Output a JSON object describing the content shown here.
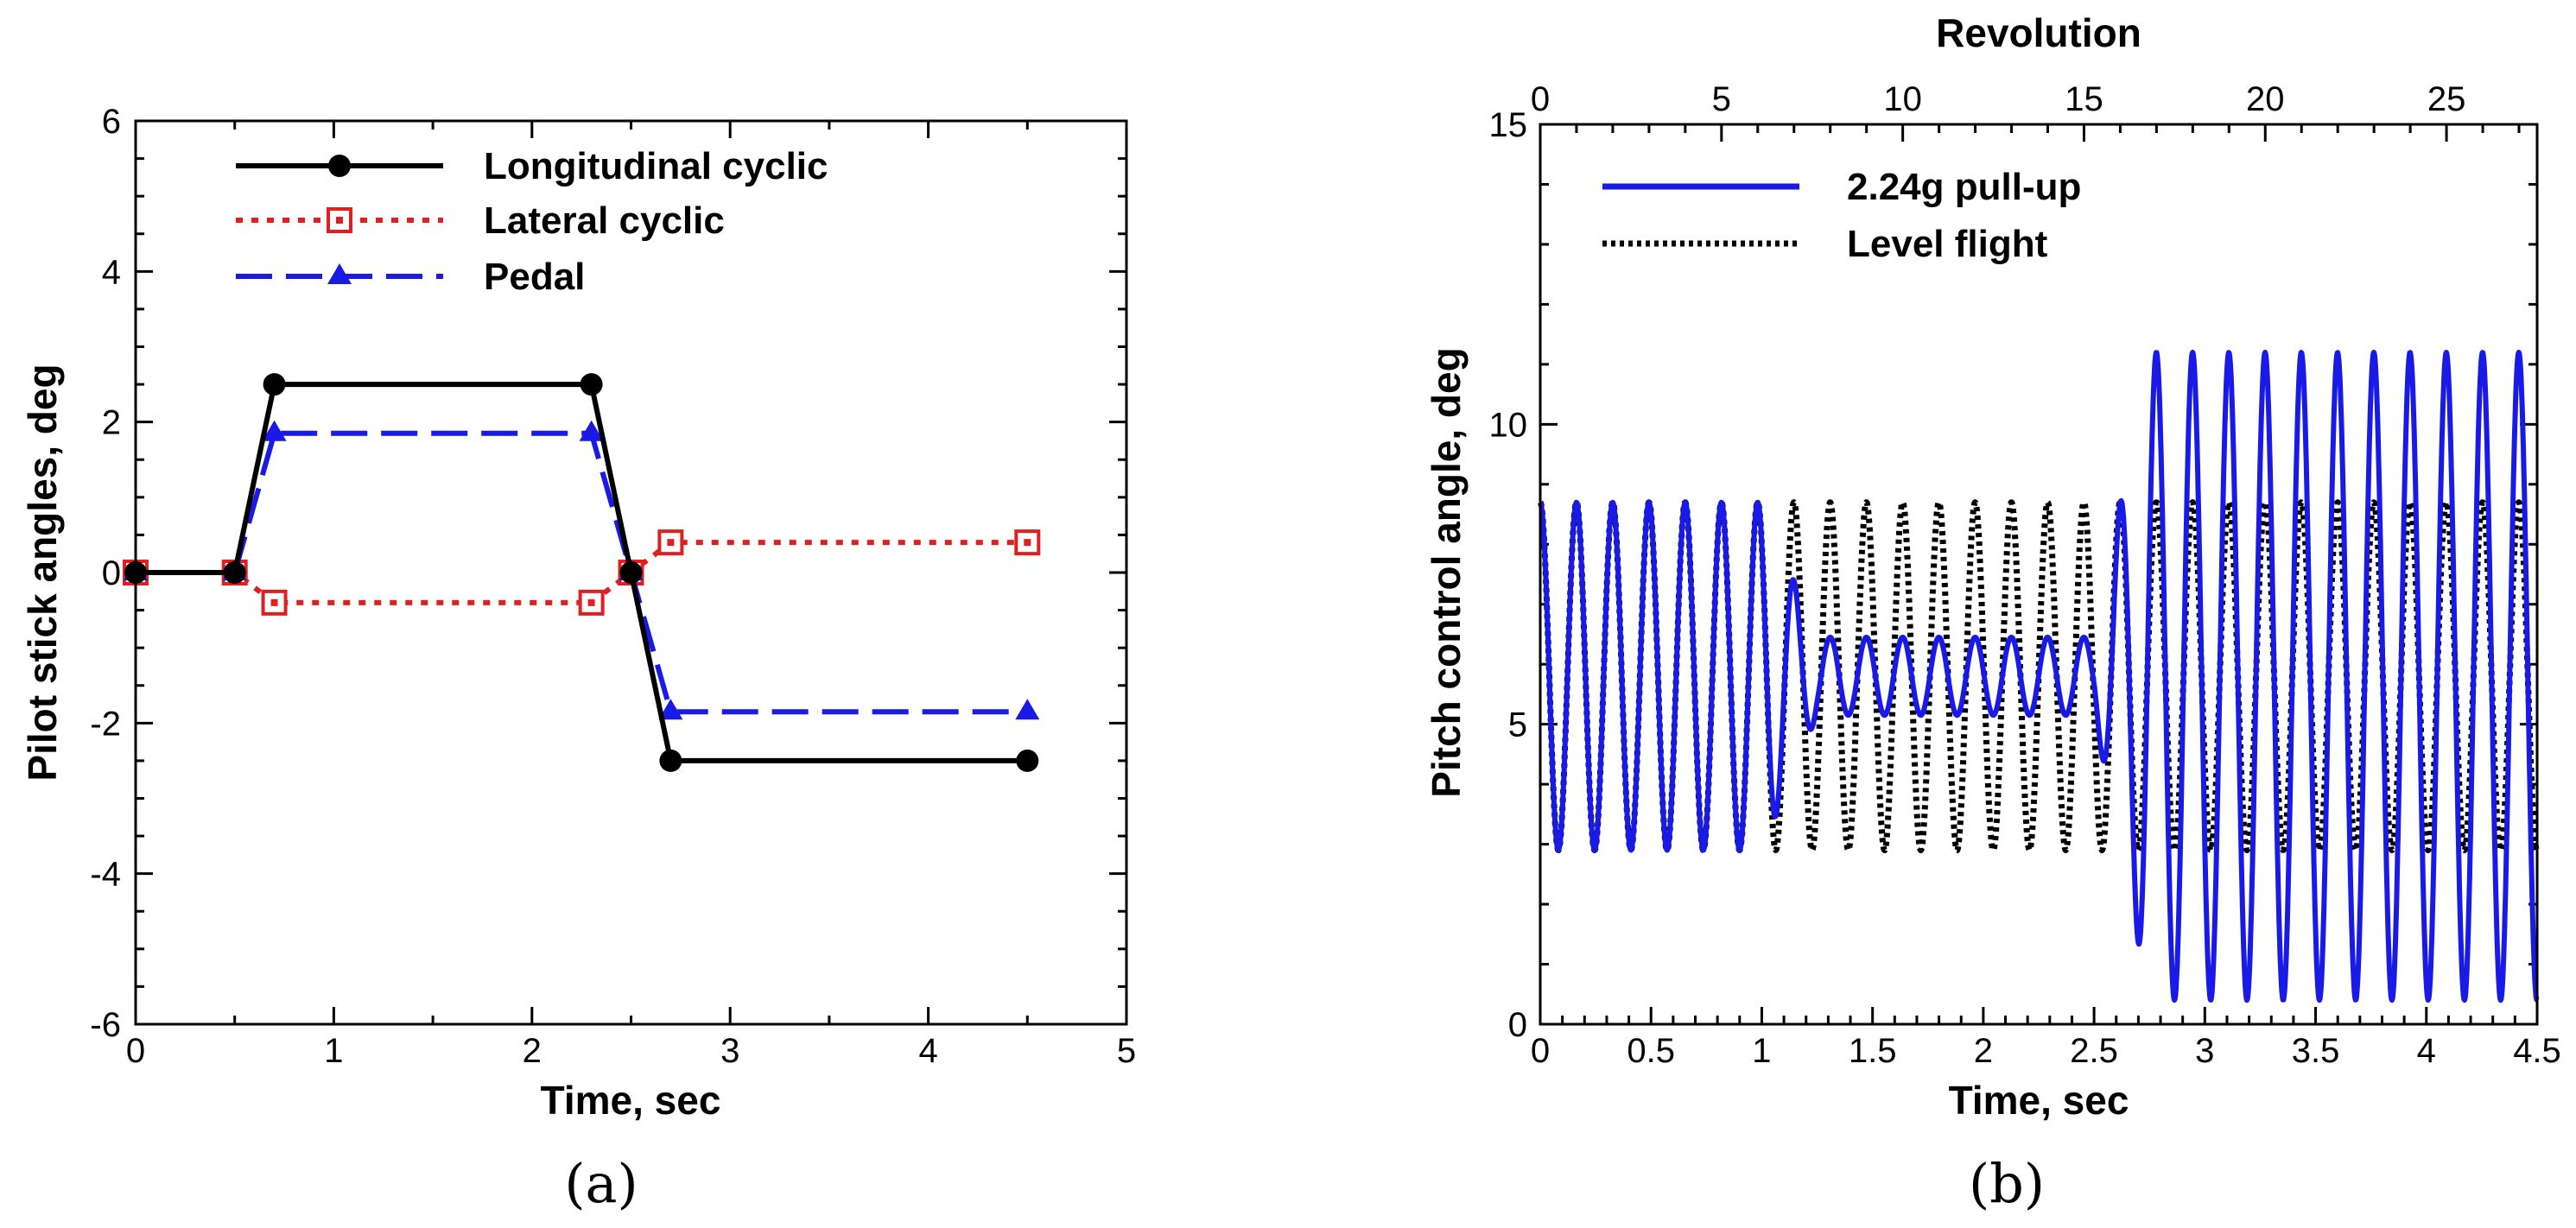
{
  "chart_data": [
    {
      "type": "line",
      "panel_label": "(a)",
      "xlabel": "Time, sec",
      "ylabel": "Pilot stick angles, deg",
      "xlim": [
        0,
        5
      ],
      "ylim": [
        -6,
        6
      ],
      "xticks": [
        "0",
        "1",
        "2",
        "3",
        "4",
        "5"
      ],
      "yticks": [
        "-6",
        "-4",
        "-2",
        "0",
        "2",
        "4",
        "6"
      ],
      "series": [
        {
          "name": "Longitudinal cyclic",
          "color": "#000000",
          "marker": "filled-circle",
          "dash": "solid",
          "x": [
            0,
            0.5,
            0.7,
            2.3,
            2.5,
            2.7,
            4.5
          ],
          "y": [
            0,
            0,
            2.5,
            2.5,
            0,
            -2.5,
            -2.5
          ]
        },
        {
          "name": "Lateral cyclic",
          "color": "#e02020",
          "marker": "open-square",
          "dash": "dotted",
          "x": [
            0,
            0.5,
            0.7,
            2.3,
            2.5,
            2.7,
            4.5
          ],
          "y": [
            0,
            0,
            -0.4,
            -0.4,
            0,
            0.4,
            0.4
          ]
        },
        {
          "name": "Pedal",
          "color": "#1a1ae6",
          "marker": "filled-triangle",
          "dash": "dashed",
          "x": [
            0,
            0.5,
            0.7,
            2.3,
            2.5,
            2.7,
            4.5
          ],
          "y": [
            0,
            0,
            1.85,
            1.85,
            0,
            -1.85,
            -1.85
          ]
        }
      ]
    },
    {
      "type": "line",
      "panel_label": "(b)",
      "xlabel": "Time, sec",
      "ylabel": "Pitch control angle, deg",
      "x2label": "Revolution",
      "xlim": [
        0,
        4.5
      ],
      "ylim": [
        0,
        15
      ],
      "x2lim": [
        0,
        27.5
      ],
      "xticks": [
        "0",
        "0.5",
        "1",
        "1.5",
        "2",
        "2.5",
        "3",
        "3.5",
        "4",
        "4.5"
      ],
      "yticks": [
        "0",
        "5",
        "10",
        "15"
      ],
      "x2ticks": [
        "0",
        "5",
        "10",
        "15",
        "20",
        "25"
      ],
      "rev_period_sec": 0.1636,
      "series": [
        {
          "name": "2.24g pull-up",
          "color": "#1a1ae6",
          "dash": "solid",
          "segments": [
            {
              "t": [
                0,
                1.0
              ],
              "mean": 5.8,
              "amplitude": 2.9
            },
            {
              "t": [
                1.25,
                2.5
              ],
              "mean": 5.8,
              "amplitude": 0.65
            },
            {
              "t": [
                2.75,
                4.5
              ],
              "mean": 5.8,
              "amplitude": 5.4
            }
          ]
        },
        {
          "name": "Level flight",
          "color": "#000000",
          "dash": "dotted",
          "segments": [
            {
              "t": [
                0,
                4.5
              ],
              "mean": 5.8,
              "amplitude": 2.9
            }
          ]
        }
      ]
    }
  ]
}
